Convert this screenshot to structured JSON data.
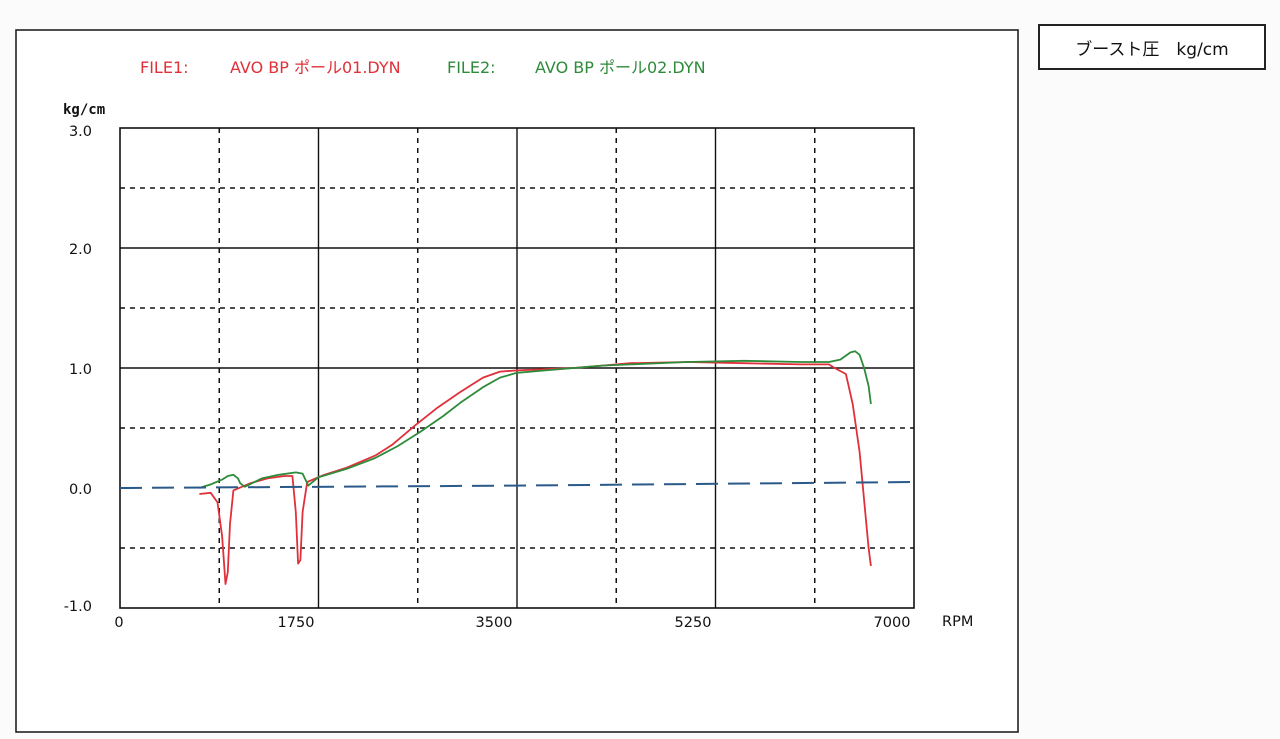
{
  "panel_title": "ブースト圧　kg/cm",
  "chart_data": {
    "type": "line",
    "files": [
      {
        "prefix": "FILE1:",
        "name": "AVO BP ポール01.DYN",
        "color": "#e0303a"
      },
      {
        "prefix": "FILE2:",
        "name": "AVO BP ポール02.DYN",
        "color": "#2e8b3a"
      }
    ],
    "ylabel": "kg/cm",
    "xlabel": "RPM",
    "xlim": [
      0,
      7000
    ],
    "ylim": [
      -1.0,
      3.0
    ],
    "x_ticks": [
      "0",
      "1750",
      "3500",
      "5250",
      "7000"
    ],
    "y_ticks": [
      "-1.0",
      "0.0",
      "1.0",
      "2.0",
      "3.0"
    ],
    "grid": "solid major / dashed minor",
    "series": [
      {
        "color": "#e0303a",
        "points": [
          [
            700,
            -0.05
          ],
          [
            800,
            -0.04
          ],
          [
            860,
            -0.12
          ],
          [
            900,
            -0.4
          ],
          [
            930,
            -0.8
          ],
          [
            950,
            -0.7
          ],
          [
            970,
            -0.3
          ],
          [
            1000,
            -0.02
          ],
          [
            1150,
            0.04
          ],
          [
            1300,
            0.08
          ],
          [
            1450,
            0.1
          ],
          [
            1520,
            0.1
          ],
          [
            1550,
            -0.2
          ],
          [
            1570,
            -0.63
          ],
          [
            1590,
            -0.6
          ],
          [
            1610,
            -0.2
          ],
          [
            1650,
            0.05
          ],
          [
            1800,
            0.11
          ],
          [
            2000,
            0.17
          ],
          [
            2250,
            0.27
          ],
          [
            2400,
            0.36
          ],
          [
            2600,
            0.52
          ],
          [
            2800,
            0.67
          ],
          [
            3000,
            0.8
          ],
          [
            3200,
            0.92
          ],
          [
            3350,
            0.97
          ],
          [
            3500,
            0.98
          ],
          [
            3750,
            0.99
          ],
          [
            4000,
            1.0
          ],
          [
            4250,
            1.02
          ],
          [
            4500,
            1.04
          ],
          [
            5000,
            1.05
          ],
          [
            5500,
            1.04
          ],
          [
            6000,
            1.03
          ],
          [
            6250,
            1.03
          ],
          [
            6300,
            1.0
          ],
          [
            6400,
            0.95
          ],
          [
            6460,
            0.7
          ],
          [
            6520,
            0.3
          ],
          [
            6560,
            -0.1
          ],
          [
            6600,
            -0.5
          ],
          [
            6620,
            -0.65
          ]
        ]
      },
      {
        "color": "#2e8b3a",
        "points": [
          [
            700,
            0.0
          ],
          [
            800,
            0.03
          ],
          [
            900,
            0.07
          ],
          [
            950,
            0.1
          ],
          [
            1000,
            0.11
          ],
          [
            1040,
            0.08
          ],
          [
            1060,
            0.04
          ],
          [
            1100,
            0.01
          ],
          [
            1250,
            0.08
          ],
          [
            1400,
            0.11
          ],
          [
            1550,
            0.13
          ],
          [
            1610,
            0.12
          ],
          [
            1640,
            0.06
          ],
          [
            1660,
            0.02
          ],
          [
            1750,
            0.09
          ],
          [
            2000,
            0.16
          ],
          [
            2250,
            0.25
          ],
          [
            2450,
            0.35
          ],
          [
            2650,
            0.47
          ],
          [
            2850,
            0.6
          ],
          [
            3000,
            0.71
          ],
          [
            3200,
            0.84
          ],
          [
            3350,
            0.92
          ],
          [
            3500,
            0.96
          ],
          [
            3750,
            0.98
          ],
          [
            4000,
            1.0
          ],
          [
            4250,
            1.02
          ],
          [
            4500,
            1.03
          ],
          [
            5000,
            1.05
          ],
          [
            5500,
            1.06
          ],
          [
            6000,
            1.05
          ],
          [
            6250,
            1.05
          ],
          [
            6350,
            1.07
          ],
          [
            6440,
            1.13
          ],
          [
            6480,
            1.14
          ],
          [
            6520,
            1.11
          ],
          [
            6560,
            1.0
          ],
          [
            6600,
            0.85
          ],
          [
            6620,
            0.7
          ]
        ]
      },
      {
        "color": "#2a5a8a",
        "dashed": true,
        "points": [
          [
            0,
            0.0
          ],
          [
            3500,
            0.02
          ],
          [
            7000,
            0.05
          ]
        ]
      }
    ]
  }
}
